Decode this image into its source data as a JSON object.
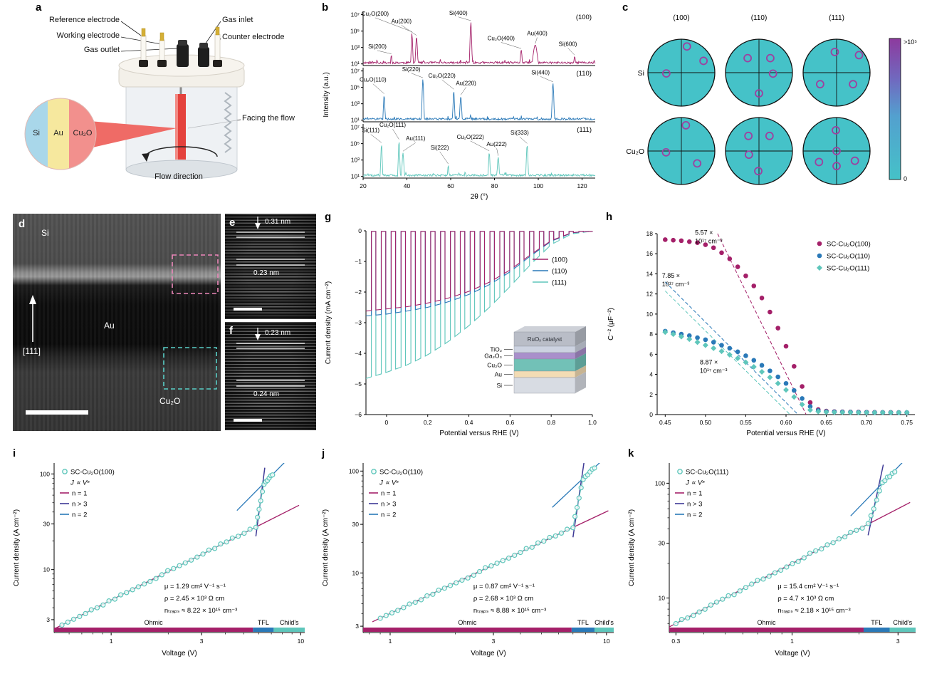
{
  "letters": {
    "a": "a",
    "b": "b",
    "c": "c",
    "d": "d",
    "e": "e",
    "f": "f",
    "g": "g",
    "h": "h",
    "i": "i",
    "j": "j",
    "k": "k"
  },
  "panel_a": {
    "reference_electrode": "Reference electrode",
    "working_electrode": "Working electrode",
    "gas_outlet": "Gas outlet",
    "gas_inlet": "Gas inlet",
    "counter_electrode": "Counter electrode",
    "facing_the_flow": "Facing the flow",
    "flow_direction": "Flow direction",
    "inset": {
      "si": "Si",
      "au": "Au",
      "cu2o": "Cu₂O"
    }
  },
  "panel_d": {
    "si": "Si",
    "au": "Au",
    "cu2o": "Cu₂O",
    "zone_axis": "[111]"
  },
  "panel_e": {
    "d1": "0.31 nm",
    "d2": "0.23 nm"
  },
  "panel_f": {
    "d1": "0.23 nm",
    "d2": "0.24 nm"
  },
  "chart_data": [
    {
      "id": "xrd",
      "type": "line",
      "xlabel": "2θ (°)",
      "ylabel": "Intensity (a.u.)",
      "xlim": [
        20,
        126
      ],
      "xticks": [
        20,
        40,
        60,
        80,
        100,
        120
      ],
      "ytick_labels": [
        "10¹",
        "10³",
        "10⁵",
        "10⁷"
      ],
      "subplots": [
        {
          "name": "(100)",
          "color": "#a42069",
          "peaks": [
            {
              "label": "Si(200)",
              "x": 32.9,
              "h": 2.05,
              "w": 0.5,
              "lx": 26.5,
              "ly": 2.8
            },
            {
              "label": "Cu₂O(200)",
              "x": 42.3,
              "h": 4.75,
              "w": 0.5,
              "lx": 25.5,
              "ly": 6.8
            },
            {
              "label": "Au(200)",
              "x": 44.4,
              "h": 4.3,
              "w": 0.6,
              "lx": 37.5,
              "ly": 5.9
            },
            {
              "label": "Si(400)",
              "x": 69.2,
              "h": 6.1,
              "w": 0.55,
              "lx": 63.5,
              "ly": 6.9
            },
            {
              "label": "Cu₂O(400)",
              "x": 92.2,
              "h": 2.7,
              "w": 0.6,
              "lx": 83,
              "ly": 3.8
            },
            {
              "label": "Au(400)",
              "x": 98.6,
              "h": 3.3,
              "w": 1.4,
              "lx": 99.5,
              "ly": 4.4
            },
            {
              "label": "Si(600)",
              "x": 116.6,
              "h": 1.9,
              "w": 0.6,
              "lx": 113.5,
              "ly": 3.1
            }
          ]
        },
        {
          "name": "(110)",
          "color": "#2a79b8",
          "peaks": [
            {
              "label": "Cu₂O(110)",
              "x": 29.6,
              "h": 4.05,
              "w": 0.5,
              "lx": 24.5,
              "ly": 5.6
            },
            {
              "label": "Si(220)",
              "x": 47.3,
              "h": 6.0,
              "w": 0.55,
              "lx": 42,
              "ly": 6.9
            },
            {
              "label": "Cu₂O(220)",
              "x": 61.4,
              "h": 4.6,
              "w": 0.5,
              "lx": 56,
              "ly": 6.1
            },
            {
              "label": "Au(220)",
              "x": 64.6,
              "h": 3.9,
              "w": 0.6,
              "lx": 67,
              "ly": 5.2
            },
            {
              "label": "Si(440)",
              "x": 106.7,
              "h": 5.5,
              "w": 0.6,
              "lx": 101,
              "ly": 6.5
            }
          ]
        },
        {
          "name": "(111)",
          "color": "#5ec6bb",
          "peaks": [
            {
              "label": "Si(111)",
              "x": 28.4,
              "h": 4.95,
              "w": 0.5,
              "lx": 23.5,
              "ly": 6.3
            },
            {
              "label": "Cu₂O(111)",
              "x": 36.4,
              "h": 5.35,
              "w": 0.5,
              "lx": 33.5,
              "ly": 6.95
            },
            {
              "label": "Au(111)",
              "x": 38.2,
              "h": 3.9,
              "w": 0.6,
              "lx": 44,
              "ly": 5.3
            },
            {
              "label": "Si(222)",
              "x": 58.9,
              "h": 2.35,
              "w": 0.5,
              "lx": 55,
              "ly": 4.2
            },
            {
              "label": "Cu₂O(222)",
              "x": 77.6,
              "h": 3.95,
              "w": 0.5,
              "lx": 69,
              "ly": 5.5
            },
            {
              "label": "Au(222)",
              "x": 81.7,
              "h": 3.35,
              "w": 0.6,
              "lx": 81,
              "ly": 4.6
            },
            {
              "label": "Si(333)",
              "x": 94.9,
              "h": 4.85,
              "w": 0.55,
              "lx": 91.5,
              "ly": 6.0
            }
          ]
        }
      ]
    },
    {
      "id": "pole",
      "type": "heatmap",
      "columns": [
        "(100)",
        "(110)",
        "(111)"
      ],
      "rows": [
        "Si",
        "Cu₂O"
      ],
      "circle_color": "#45c2c8",
      "spot_color": "#9d41a0",
      "colorbar": {
        "top_label": ">10⁵",
        "bottom_label": "0",
        "stops": [
          [
            0,
            "#8d3a9e"
          ],
          [
            0.3,
            "#6f6bc0"
          ],
          [
            0.55,
            "#53a0cf"
          ],
          [
            1,
            "#45c2c8"
          ]
        ]
      },
      "spots": [
        [
          [
            [
              78,
              0.8
            ],
            [
              28,
              0.75
            ],
            [
              183,
              0.45
            ]
          ],
          [
            [
              128,
              0.55
            ],
            [
              52,
              0.55
            ],
            [
              270,
              0.62
            ],
            [
              356,
              0.42
            ]
          ],
          [
            [
              95,
              0.62
            ],
            [
              215,
              0.6
            ],
            [
              325,
              0.6
            ],
            [
              38,
              0.85
            ]
          ]
        ],
        [
          [
            [
              80,
              0.78
            ],
            [
              185,
              0.46
            ],
            [
              322,
              0.6
            ]
          ],
          [
            [
              125,
              0.55
            ],
            [
              55,
              0.55
            ],
            [
              268,
              0.6
            ],
            [
              200,
              0.32
            ]
          ],
          [
            [
              0,
              0
            ],
            [
              92,
              0.62
            ],
            [
              212,
              0.62
            ],
            [
              332,
              0.62
            ],
            [
              270,
              0.45
            ]
          ]
        ]
      ]
    },
    {
      "id": "jv",
      "type": "line",
      "xlabel": "Potential versus RHE (V)",
      "ylabel": "Current density (mA cm⁻²)",
      "xlim": [
        -0.1,
        1.0
      ],
      "ylim": [
        -6,
        0
      ],
      "xticks": [
        0,
        0.2,
        0.4,
        0.6,
        0.8,
        1.0
      ],
      "yticks": [
        0,
        -1,
        -2,
        -3,
        -4,
        -5,
        -6
      ],
      "chop_period": 0.048,
      "series": [
        {
          "name": "(100)",
          "color": "#a42069",
          "envelope": [
            [
              -0.1,
              2.62
            ],
            [
              0,
              2.55
            ],
            [
              0.1,
              2.48
            ],
            [
              0.2,
              2.36
            ],
            [
              0.3,
              2.2
            ],
            [
              0.4,
              1.98
            ],
            [
              0.5,
              1.68
            ],
            [
              0.6,
              1.28
            ],
            [
              0.7,
              0.78
            ],
            [
              0.8,
              0.32
            ],
            [
              0.9,
              0.06
            ],
            [
              1.0,
              0.01
            ]
          ]
        },
        {
          "name": "(110)",
          "color": "#2a79b8",
          "envelope": [
            [
              -0.1,
              2.78
            ],
            [
              0,
              2.72
            ],
            [
              0.1,
              2.62
            ],
            [
              0.2,
              2.5
            ],
            [
              0.3,
              2.32
            ],
            [
              0.4,
              2.08
            ],
            [
              0.5,
              1.76
            ],
            [
              0.6,
              1.34
            ],
            [
              0.7,
              0.82
            ],
            [
              0.8,
              0.34
            ],
            [
              0.9,
              0.07
            ],
            [
              1.0,
              0.01
            ]
          ]
        },
        {
          "name": "(111)",
          "color": "#5ec6bb",
          "envelope": [
            [
              -0.1,
              4.82
            ],
            [
              0,
              4.62
            ],
            [
              0.1,
              4.38
            ],
            [
              0.2,
              4.05
            ],
            [
              0.3,
              3.62
            ],
            [
              0.4,
              3.1
            ],
            [
              0.5,
              2.5
            ],
            [
              0.6,
              1.82
            ],
            [
              0.7,
              1.1
            ],
            [
              0.8,
              0.45
            ],
            [
              0.9,
              0.1
            ],
            [
              1.0,
              0.01
            ]
          ]
        }
      ],
      "inset": {
        "cap_label": "RuOₓ catalyst",
        "cap_color": "#b9bdc7",
        "cap_h": 20,
        "layers": [
          {
            "name": "TiO₂",
            "color": "#ccd2e0",
            "h": 9
          },
          {
            "name": "Ga₂O₃",
            "color": "#a98fcb",
            "h": 9
          },
          {
            "name": "Cu₂O",
            "color": "#72c1b7",
            "h": 17
          },
          {
            "name": "Au",
            "color": "#f3dcb4",
            "h": 9
          },
          {
            "name": "Si",
            "color": "#d8dce3",
            "h": 22
          }
        ]
      }
    },
    {
      "id": "mott",
      "type": "scatter",
      "xlabel": "Potential versus RHE (V)",
      "ylabel": "C⁻² (μF⁻²)",
      "xlim": [
        0.44,
        0.76
      ],
      "ylim": [
        0,
        18
      ],
      "xticks": [
        0.45,
        0.5,
        0.55,
        0.6,
        0.65,
        0.7,
        0.75
      ],
      "yticks": [
        0,
        2,
        4,
        6,
        8,
        10,
        12,
        14,
        16,
        18
      ],
      "series": [
        {
          "name": "SC-Cu₂O(100)",
          "color": "#a42069",
          "marker": "circle",
          "x0": 0.45,
          "dx": 0.01,
          "y": [
            17.4,
            17.35,
            17.3,
            17.2,
            17.1,
            16.9,
            16.6,
            16.1,
            15.5,
            14.7,
            13.8,
            12.8,
            11.6,
            10.2,
            8.6,
            6.8,
            4.8,
            2.8,
            1.2,
            0.5,
            0.35,
            0.3,
            0.28,
            0.26,
            0.25,
            0.24,
            0.23,
            0.22,
            0.22,
            0.21,
            0.2
          ],
          "fit": [
            [
              0.515,
              18
            ],
            [
              0.625,
              0
            ]
          ]
        },
        {
          "name": "SC-Cu₂O(110)",
          "color": "#2a79b8",
          "marker": "circle",
          "x0": 0.45,
          "dx": 0.01,
          "y": [
            8.3,
            8.15,
            8.0,
            7.85,
            7.65,
            7.45,
            7.2,
            6.9,
            6.6,
            6.25,
            5.85,
            5.4,
            4.9,
            4.35,
            3.75,
            3.1,
            2.4,
            1.6,
            0.8,
            0.4,
            0.3,
            0.27,
            0.25,
            0.24,
            0.23,
            0.22,
            0.21,
            0.21,
            0.2,
            0.2,
            0.2
          ],
          "fit": [
            [
              0.45,
              13.2
            ],
            [
              0.615,
              0
            ]
          ]
        },
        {
          "name": "SC-Cu₂O(111)",
          "color": "#5ec6bb",
          "marker": "diamond",
          "x0": 0.45,
          "dx": 0.01,
          "y": [
            8.2,
            8.0,
            7.75,
            7.5,
            7.2,
            6.9,
            6.6,
            6.3,
            5.95,
            5.6,
            5.2,
            4.75,
            4.25,
            3.7,
            3.1,
            2.45,
            1.75,
            1.0,
            0.45,
            0.3,
            0.25,
            0.23,
            0.22,
            0.21,
            0.2,
            0.2,
            0.2,
            0.2,
            0.2,
            0.2,
            0.2
          ],
          "fit": [
            [
              0.45,
              12.3
            ],
            [
              0.605,
              0
            ]
          ]
        }
      ],
      "annotations": [
        {
          "lines": [
            "5.57 ×",
            "10¹⁷ cm⁻³"
          ],
          "x": 0.487,
          "y": 17.9
        },
        {
          "lines": [
            "7.85 ×",
            "10¹⁷ cm⁻³"
          ],
          "x": 0.446,
          "y": 13.6
        },
        {
          "lines": [
            "8.87 ×",
            "10¹⁷ cm⁻³"
          ],
          "x": 0.493,
          "y": 5.0
        }
      ]
    },
    {
      "id": "sclc_i",
      "type": "scatter",
      "legend_name": "SC-Cu₂O(100)",
      "power_label": "J ∝ Vⁿ",
      "line_labels": [
        "n = 1",
        "n > 3",
        "n = 2"
      ],
      "line_colors": [
        "#a42069",
        "#3e3a96",
        "#2a79b8"
      ],
      "marker_color": "#5ec6bb",
      "xlabel": "Voltage (V)",
      "ylabel": "Current density (A cm⁻²)",
      "xlim": [
        0.5,
        10.5
      ],
      "ylim": [
        2.2,
        130
      ],
      "xticks": [
        1,
        3,
        10
      ],
      "yticks": [
        3,
        10,
        30,
        100
      ],
      "ohmic_coef": 4.8,
      "v_start": 0.55,
      "v_tfl": 5.8,
      "v_child": 6.4,
      "j_child": 80,
      "v_data_end": 7.1,
      "v_line_end": 9.8,
      "regions": [
        {
          "name": "Ohmic",
          "color": "#a42069",
          "from": 0.5,
          "to": 5.6
        },
        {
          "name": "TFL",
          "color": "#2a79b8",
          "from": 5.6,
          "to": 7.2
        },
        {
          "name": "Child's",
          "color": "#5ec6bb",
          "from": 7.2,
          "to": 10.5
        }
      ],
      "stats": [
        "μ = 1.29 cm² V⁻¹ s⁻¹",
        "ρ = 2.45 × 10³ Ω cm",
        "nₜᵣₐₚₛ ≈ 8.22 × 10¹⁵ cm⁻³"
      ]
    },
    {
      "id": "sclc_j",
      "type": "scatter",
      "legend_name": "SC-Cu₂O(110)",
      "power_label": "J ∝ Vⁿ",
      "line_labels": [
        "n = 1",
        "n > 3",
        "n = 2"
      ],
      "line_colors": [
        "#a42069",
        "#3e3a96",
        "#2a79b8"
      ],
      "marker_color": "#5ec6bb",
      "xlabel": "Voltage (V)",
      "ylabel": "Current density (A cm⁻²)",
      "xlim": [
        0.75,
        10.8
      ],
      "ylim": [
        2.6,
        120
      ],
      "xticks": [
        1,
        3,
        10
      ],
      "yticks": [
        3,
        10,
        30,
        100
      ],
      "ohmic_coef": 4.0,
      "v_start": 0.9,
      "v_tfl": 7.0,
      "v_child": 7.8,
      "j_child": 85,
      "v_data_end": 8.8,
      "v_line_end": 10.2,
      "regions": [
        {
          "name": "Ohmic",
          "color": "#a42069",
          "from": 0.75,
          "to": 6.9
        },
        {
          "name": "TFL",
          "color": "#2a79b8",
          "from": 6.9,
          "to": 8.8
        },
        {
          "name": "Child's",
          "color": "#5ec6bb",
          "from": 8.8,
          "to": 10.8
        }
      ],
      "stats": [
        "μ = 0.87 cm² V⁻¹ s⁻¹",
        "ρ = 2.68 × 10³ Ω cm",
        "nₜᵣₐₚₛ ≈ 8.88 × 10¹⁵ cm⁻³"
      ]
    },
    {
      "id": "sclc_k",
      "type": "scatter",
      "legend_name": "SC-Cu₂O(111)",
      "power_label": "J ∝ Vⁿ",
      "line_labels": [
        "n = 1",
        "n > 3",
        "n = 2"
      ],
      "line_colors": [
        "#a42069",
        "#3e3a96",
        "#2a79b8"
      ],
      "marker_color": "#5ec6bb",
      "xlabel": "Voltage (V)",
      "ylabel": "Current density (A cm⁻²)",
      "xlim": [
        0.28,
        3.6
      ],
      "ylim": [
        5,
        150
      ],
      "xticks": [
        0.3,
        1,
        3
      ],
      "yticks": [
        10,
        30,
        100
      ],
      "ohmic_coef": 20,
      "v_start": 0.3,
      "v_tfl": 2.2,
      "v_child": 2.55,
      "j_child": 100,
      "v_data_end": 2.9,
      "v_line_end": 3.4,
      "regions": [
        {
          "name": "Ohmic",
          "color": "#a42069",
          "from": 0.28,
          "to": 2.1
        },
        {
          "name": "TFL",
          "color": "#2a79b8",
          "from": 2.1,
          "to": 2.75
        },
        {
          "name": "Child's",
          "color": "#5ec6bb",
          "from": 2.75,
          "to": 3.6
        }
      ],
      "stats": [
        "μ = 15.4 cm² V⁻¹ s⁻¹",
        "ρ = 4.7 × 10³ Ω cm",
        "nₜᵣₐₚₛ ≈ 2.18 × 10¹⁵ cm⁻³"
      ]
    }
  ]
}
